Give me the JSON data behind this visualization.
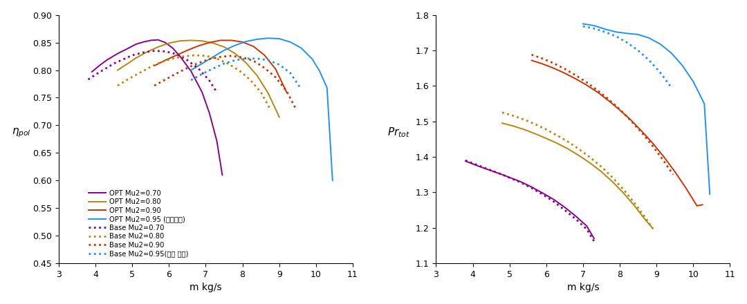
{
  "left": {
    "xlabel": "m kg/s",
    "xlim": [
      3,
      11
    ],
    "ylim": [
      0.45,
      0.9
    ],
    "yticks": [
      0.45,
      0.5,
      0.55,
      0.6,
      0.65,
      0.7,
      0.75,
      0.8,
      0.85,
      0.9
    ],
    "xticks": [
      3,
      4,
      5,
      6,
      7,
      8,
      9,
      10,
      11
    ],
    "colors": {
      "mu70": "#8B008B",
      "mu80": "#B8860B",
      "mu90": "#CC3300",
      "mu95": "#1E90FF"
    },
    "OPT_mu70_x": [
      3.9,
      4.1,
      4.3,
      4.6,
      4.9,
      5.1,
      5.3,
      5.5,
      5.7,
      5.9,
      6.1,
      6.3,
      6.6,
      6.9,
      7.1,
      7.3,
      7.45
    ],
    "OPT_mu70_y": [
      0.797,
      0.808,
      0.818,
      0.83,
      0.84,
      0.847,
      0.851,
      0.854,
      0.855,
      0.85,
      0.84,
      0.825,
      0.798,
      0.76,
      0.722,
      0.672,
      0.61
    ],
    "OPT_mu80_x": [
      4.6,
      4.9,
      5.1,
      5.4,
      5.7,
      6.0,
      6.3,
      6.6,
      6.9,
      7.2,
      7.5,
      7.8,
      8.1,
      8.4,
      8.7,
      9.0
    ],
    "OPT_mu80_y": [
      0.8,
      0.813,
      0.822,
      0.833,
      0.842,
      0.849,
      0.853,
      0.854,
      0.853,
      0.849,
      0.842,
      0.83,
      0.813,
      0.79,
      0.758,
      0.715
    ],
    "OPT_mu90_x": [
      5.6,
      5.9,
      6.2,
      6.5,
      6.8,
      7.1,
      7.4,
      7.7,
      8.0,
      8.3,
      8.6,
      8.9,
      9.2
    ],
    "OPT_mu90_y": [
      0.808,
      0.818,
      0.827,
      0.836,
      0.844,
      0.85,
      0.854,
      0.854,
      0.851,
      0.843,
      0.827,
      0.802,
      0.76
    ],
    "OPT_mu95_x": [
      6.6,
      6.9,
      7.2,
      7.5,
      7.8,
      8.1,
      8.4,
      8.7,
      9.0,
      9.3,
      9.6,
      9.9,
      10.1,
      10.3,
      10.45
    ],
    "OPT_mu95_y": [
      0.8,
      0.812,
      0.824,
      0.836,
      0.845,
      0.852,
      0.856,
      0.858,
      0.857,
      0.851,
      0.84,
      0.82,
      0.798,
      0.768,
      0.6
    ],
    "Base_mu70_x": [
      3.8,
      4.0,
      4.2,
      4.5,
      4.8,
      5.0,
      5.3,
      5.6,
      5.9,
      6.2,
      6.5,
      6.8,
      7.1,
      7.3
    ],
    "Base_mu70_y": [
      0.783,
      0.792,
      0.8,
      0.812,
      0.821,
      0.827,
      0.832,
      0.835,
      0.834,
      0.829,
      0.818,
      0.803,
      0.781,
      0.76
    ],
    "Base_mu80_x": [
      4.6,
      4.9,
      5.2,
      5.5,
      5.8,
      6.1,
      6.4,
      6.7,
      7.0,
      7.3,
      7.6,
      7.9,
      8.2,
      8.5,
      8.75
    ],
    "Base_mu80_y": [
      0.772,
      0.784,
      0.795,
      0.806,
      0.815,
      0.821,
      0.825,
      0.827,
      0.826,
      0.821,
      0.812,
      0.8,
      0.783,
      0.76,
      0.73
    ],
    "Base_mu90_x": [
      5.6,
      5.9,
      6.2,
      6.5,
      6.8,
      7.1,
      7.4,
      7.7,
      8.0,
      8.3,
      8.6,
      8.9,
      9.2,
      9.45
    ],
    "Base_mu90_y": [
      0.772,
      0.783,
      0.794,
      0.804,
      0.813,
      0.82,
      0.824,
      0.826,
      0.823,
      0.817,
      0.804,
      0.787,
      0.762,
      0.73
    ],
    "Base_mu95_x": [
      6.6,
      6.9,
      7.2,
      7.5,
      7.8,
      8.1,
      8.4,
      8.7,
      9.0,
      9.3,
      9.55
    ],
    "Base_mu95_y": [
      0.782,
      0.793,
      0.803,
      0.812,
      0.818,
      0.821,
      0.821,
      0.818,
      0.81,
      0.795,
      0.77
    ],
    "legend": [
      [
        "OPT Mu2=0.70",
        "solid",
        "#8B008B"
      ],
      [
        "OPT Mu2=0.80",
        "solid",
        "#B8860B"
      ],
      [
        "OPT Mu2=0.90",
        "solid",
        "#CC3300"
      ],
      [
        "OPT Mu2=0.95 (设计转速)",
        "solid",
        "#1E90FF"
      ],
      [
        "Base Mu2=0.70",
        "dotted",
        "#8B008B"
      ],
      [
        "Base Mu2=0.80",
        "dotted",
        "#B8860B"
      ],
      [
        "Base Mu2=0.90",
        "dotted",
        "#CC3300"
      ],
      [
        "Base Mu2=0.95(设计 转速)",
        "dotted",
        "#1E90FF"
      ]
    ]
  },
  "right": {
    "xlabel": "m kg/s",
    "xlim": [
      3,
      11
    ],
    "ylim": [
      1.1,
      1.8
    ],
    "yticks": [
      1.1,
      1.2,
      1.3,
      1.4,
      1.5,
      1.6,
      1.7,
      1.8
    ],
    "xticks": [
      3,
      4,
      5,
      6,
      7,
      8,
      9,
      10,
      11
    ],
    "colors": {
      "mu70": "#8B008B",
      "mu80": "#B8860B",
      "mu90": "#CC3300",
      "mu95": "#1E90FF"
    },
    "OPT_mu70_x": [
      3.8,
      4.0,
      4.2,
      4.5,
      4.8,
      5.0,
      5.3,
      5.6,
      5.9,
      6.2,
      6.5,
      6.8,
      7.1,
      7.3
    ],
    "OPT_mu70_y": [
      1.388,
      1.38,
      1.372,
      1.361,
      1.35,
      1.342,
      1.33,
      1.315,
      1.298,
      1.28,
      1.258,
      1.233,
      1.205,
      1.17
    ],
    "OPT_mu80_x": [
      4.8,
      5.1,
      5.4,
      5.7,
      6.0,
      6.3,
      6.6,
      6.9,
      7.2,
      7.5,
      7.8,
      8.1,
      8.4,
      8.7,
      8.9
    ],
    "OPT_mu80_y": [
      1.495,
      1.487,
      1.477,
      1.465,
      1.452,
      1.438,
      1.422,
      1.403,
      1.382,
      1.358,
      1.33,
      1.298,
      1.262,
      1.222,
      1.198
    ],
    "OPT_mu90_x": [
      5.6,
      5.9,
      6.2,
      6.5,
      6.8,
      7.1,
      7.4,
      7.7,
      8.0,
      8.3,
      8.6,
      8.9,
      9.2,
      9.5,
      9.8,
      10.1,
      10.25
    ],
    "OPT_mu90_y": [
      1.672,
      1.662,
      1.65,
      1.636,
      1.62,
      1.602,
      1.582,
      1.558,
      1.532,
      1.504,
      1.472,
      1.438,
      1.4,
      1.358,
      1.312,
      1.262,
      1.265
    ],
    "OPT_mu95_x": [
      7.0,
      7.3,
      7.6,
      7.9,
      8.2,
      8.5,
      8.8,
      9.1,
      9.4,
      9.7,
      10.0,
      10.3,
      10.45
    ],
    "OPT_mu95_y": [
      1.775,
      1.77,
      1.76,
      1.752,
      1.748,
      1.745,
      1.735,
      1.718,
      1.693,
      1.658,
      1.612,
      1.55,
      1.295
    ],
    "Base_mu70_x": [
      3.8,
      4.0,
      4.2,
      4.5,
      4.8,
      5.0,
      5.3,
      5.6,
      5.9,
      6.2,
      6.5,
      6.8,
      7.1,
      7.3
    ],
    "Base_mu70_y": [
      1.39,
      1.382,
      1.374,
      1.362,
      1.35,
      1.341,
      1.328,
      1.312,
      1.294,
      1.274,
      1.25,
      1.225,
      1.196,
      1.162
    ],
    "Base_mu80_x": [
      4.8,
      5.1,
      5.4,
      5.7,
      6.0,
      6.3,
      6.6,
      6.9,
      7.2,
      7.5,
      7.8,
      8.1,
      8.4,
      8.7,
      8.9
    ],
    "Base_mu80_y": [
      1.525,
      1.516,
      1.505,
      1.492,
      1.477,
      1.46,
      1.442,
      1.421,
      1.398,
      1.372,
      1.342,
      1.308,
      1.27,
      1.228,
      1.198
    ],
    "Base_mu90_x": [
      5.6,
      5.9,
      6.2,
      6.5,
      6.8,
      7.1,
      7.4,
      7.7,
      8.0,
      8.3,
      8.6,
      8.9,
      9.2,
      9.45
    ],
    "Base_mu90_y": [
      1.688,
      1.677,
      1.664,
      1.648,
      1.63,
      1.61,
      1.587,
      1.562,
      1.534,
      1.502,
      1.468,
      1.43,
      1.388,
      1.35
    ],
    "Base_mu95_x": [
      7.0,
      7.3,
      7.6,
      7.9,
      8.2,
      8.5,
      8.8,
      9.1,
      9.4
    ],
    "Base_mu95_y": [
      1.768,
      1.762,
      1.752,
      1.74,
      1.722,
      1.7,
      1.672,
      1.638,
      1.596
    ]
  }
}
